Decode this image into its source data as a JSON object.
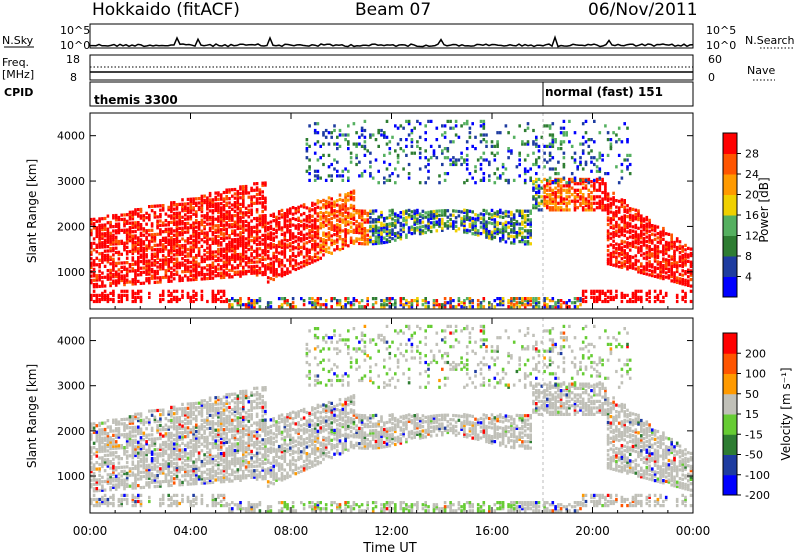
{
  "header": {
    "station": "Hokkaido (fitACF)",
    "beam": "Beam 07",
    "date": "06/Nov/2011"
  },
  "strip_panels": {
    "nsky": {
      "label": "N.Sky",
      "ticks_left": [
        "10^5",
        "10^0"
      ],
      "right_label": "N.Search",
      "ticks_right": [
        "10^5",
        "10^0"
      ]
    },
    "freq": {
      "label_top": "Freq.",
      "label_bottom": "[MHz]",
      "ticks_left": [
        "18",
        "8"
      ],
      "right_label": "Nave",
      "ticks_right": [
        "60",
        "0"
      ]
    },
    "cpid": {
      "label": "CPID",
      "segments": [
        {
          "name": "themis 3300",
          "start_hour": 0,
          "end_hour": 18
        },
        {
          "name": "normal (fast) 151",
          "start_hour": 18,
          "end_hour": 24
        }
      ]
    }
  },
  "x_axis": {
    "label": "Time UT",
    "tick_labels": [
      "00:00",
      "04:00",
      "08:00",
      "12:00",
      "16:00",
      "20:00",
      "00:00"
    ]
  },
  "chart_data": [
    {
      "type": "heatmap",
      "name": "power",
      "ylabel": "Slant Range [km]",
      "xlabel": "Time UT",
      "xlim": [
        0,
        24
      ],
      "ylim": [
        180,
        4500
      ],
      "yticks": [
        1000,
        2000,
        3000,
        4000
      ],
      "colorbar": {
        "label": "Power [dB]",
        "tick_labels": [
          "28",
          "24",
          "20",
          "16",
          "12",
          "8",
          "4"
        ],
        "tick_values": [
          28,
          24,
          20,
          16,
          12,
          8,
          4
        ],
        "range": [
          0,
          32
        ],
        "colors": [
          "#0000ff",
          "#1e3ca0",
          "#2e7d32",
          "#55b060",
          "#f0d000",
          "#ff9a00",
          "#ff5500",
          "#ff0000"
        ]
      }
    },
    {
      "type": "heatmap",
      "name": "velocity",
      "ylabel": "Slant Range [km]",
      "xlabel": "Time UT",
      "xlim": [
        0,
        24
      ],
      "ylim": [
        180,
        4500
      ],
      "yticks": [
        1000,
        2000,
        3000,
        4000
      ],
      "colorbar": {
        "label": "Velocity [m s⁻¹]",
        "tick_labels": [
          "200",
          "100",
          "50",
          "15",
          "-15",
          "-50",
          "-100",
          "-200"
        ],
        "tick_values": [
          200,
          100,
          50,
          15,
          -15,
          -50,
          -100,
          -200
        ],
        "colors": [
          "#0000ff",
          "#1e3ca0",
          "#2e7d32",
          "#66cc33",
          "#c0c0b8",
          "#ff9a00",
          "#ff5500",
          "#ff0000"
        ]
      }
    }
  ]
}
